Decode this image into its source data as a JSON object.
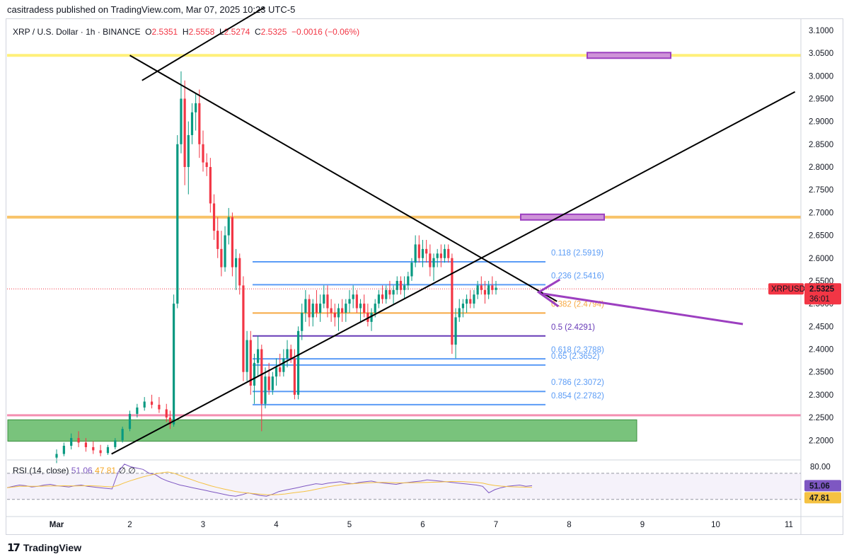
{
  "header": {
    "published_by": "casitradess published on TradingView.com, Mar 07, 2025 10:23 UTC-5"
  },
  "legend": {
    "symbol": "XRP / U.S. Dollar · 1h · BINANCE",
    "o_label": "O",
    "o": "2.5351",
    "h_label": "H",
    "h": "2.5558",
    "l_label": "L",
    "l": "2.5274",
    "c_label": "C",
    "c": "2.5325",
    "change": "−0.0016 (−0.06%)"
  },
  "price_badge": {
    "ticker": "XRPUSD",
    "price": "2.5325",
    "countdown": "36:01"
  },
  "rsi": {
    "label": "RSI (14, close)",
    "value": "51.06",
    "ma": "47.81",
    "symbol": "∅ ∅",
    "level_label": "80.00"
  },
  "footer": {
    "brand": "TradingView"
  },
  "colors": {
    "up": "#089981",
    "down": "#f23645",
    "fib_blue": "#5b9cf6",
    "fib_orange": "#f7a943",
    "fib_purple": "#673ab7",
    "yellow_zone": "#fff07a",
    "orange_zone": "#f8c46a",
    "support_zone": "#4caf50",
    "pink_line": "#f48fb1",
    "arrow": "#9c3fc0",
    "rsi_line": "#7e57c2",
    "rsi_ma": "#f5c242"
  },
  "chart_data": {
    "type": "candlestick",
    "symbol": "XRP / U.S. Dollar",
    "interval": "1h",
    "x_ticks": [
      "Mar",
      "2",
      "3",
      "4",
      "5",
      "6",
      "7",
      "8",
      "9",
      "10",
      "11"
    ],
    "y_ticks": [
      "3.1000",
      "3.0500",
      "3.0000",
      "2.9500",
      "2.9000",
      "2.8500",
      "2.8000",
      "2.7500",
      "2.7000",
      "2.6500",
      "2.6000",
      "2.5500",
      "2.5000",
      "2.4500",
      "2.4000",
      "2.3500",
      "2.3000",
      "2.2500",
      "2.2000"
    ],
    "ylim": [
      2.16,
      3.12
    ],
    "xlim": [
      "Feb 28 18:00",
      "Mar 11 12:00"
    ],
    "fib_levels": [
      {
        "label": "0.118 (2.5919)",
        "value": 2.5919,
        "color": "blue"
      },
      {
        "label": "0.236 (2.5416)",
        "value": 2.5416,
        "color": "blue"
      },
      {
        "label": "0.382 (2.4794)",
        "value": 2.4794,
        "color": "orange"
      },
      {
        "label": "0.5 (2.4291)",
        "value": 2.4291,
        "color": "purple"
      },
      {
        "label": "0.618 (2.3788)",
        "value": 2.3788,
        "color": "blue"
      },
      {
        "label": "0.65 (2.3652)",
        "value": 2.3652,
        "color": "blue"
      },
      {
        "label": "0.786 (2.3072)",
        "value": 2.3072,
        "color": "blue"
      },
      {
        "label": "0.854 (2.2782)",
        "value": 2.2782,
        "color": "blue"
      }
    ],
    "horizontal_zones": [
      {
        "value": 3.045,
        "color": "yellow"
      },
      {
        "value": 2.69,
        "color": "orange"
      },
      {
        "value": 2.255,
        "color": "pink"
      }
    ],
    "support_box": [
      2.198,
      2.245
    ],
    "trendlines": [
      {
        "from": [
          "Mar 2 00:00",
          3.045
        ],
        "to": [
          "Mar 7 20:00",
          2.505
        ]
      },
      {
        "from": [
          "Mar 1 18:00",
          2.17
        ],
        "to": [
          "Mar 11 02:00",
          2.965
        ]
      },
      {
        "from": [
          "Mar 2 04:00",
          2.99
        ],
        "to": [
          "Mar 3 20:00",
          3.15
        ]
      }
    ],
    "arrow_target": [
      "Mar 7 14:00",
      2.525
    ],
    "current_price": 2.5325,
    "candles": [
      {
        "d": 0.0,
        "o": 2.162,
        "h": 2.18,
        "l": 2.15,
        "c": 2.17
      },
      {
        "d": 0.1,
        "o": 2.17,
        "h": 2.195,
        "l": 2.165,
        "c": 2.188
      },
      {
        "d": 0.2,
        "o": 2.188,
        "h": 2.215,
        "l": 2.18,
        "c": 2.205
      },
      {
        "d": 0.3,
        "o": 2.205,
        "h": 2.22,
        "l": 2.185,
        "c": 2.195
      },
      {
        "d": 0.4,
        "o": 2.195,
        "h": 2.205,
        "l": 2.175,
        "c": 2.185
      },
      {
        "d": 0.5,
        "o": 2.185,
        "h": 2.198,
        "l": 2.17,
        "c": 2.178
      },
      {
        "d": 0.6,
        "o": 2.178,
        "h": 2.19,
        "l": 2.165,
        "c": 2.172
      },
      {
        "d": 0.7,
        "o": 2.172,
        "h": 2.19,
        "l": 2.168,
        "c": 2.185
      },
      {
        "d": 0.8,
        "o": 2.185,
        "h": 2.205,
        "l": 2.18,
        "c": 2.2
      },
      {
        "d": 0.9,
        "o": 2.2,
        "h": 2.23,
        "l": 2.195,
        "c": 2.225
      },
      {
        "d": 1.0,
        "o": 2.225,
        "h": 2.265,
        "l": 2.22,
        "c": 2.258
      },
      {
        "d": 1.1,
        "o": 2.258,
        "h": 2.28,
        "l": 2.25,
        "c": 2.272
      },
      {
        "d": 1.2,
        "o": 2.272,
        "h": 2.295,
        "l": 2.265,
        "c": 2.285
      },
      {
        "d": 1.3,
        "o": 2.285,
        "h": 2.3,
        "l": 2.27,
        "c": 2.278
      },
      {
        "d": 1.4,
        "o": 2.278,
        "h": 2.295,
        "l": 2.26,
        "c": 2.268
      },
      {
        "d": 1.5,
        "o": 2.268,
        "h": 2.28,
        "l": 2.24,
        "c": 2.25
      },
      {
        "d": 1.55,
        "o": 2.25,
        "h": 2.265,
        "l": 2.225,
        "c": 2.235
      },
      {
        "d": 1.6,
        "o": 2.235,
        "h": 2.52,
        "l": 2.23,
        "c": 2.5
      },
      {
        "d": 1.65,
        "o": 2.5,
        "h": 2.87,
        "l": 2.49,
        "c": 2.85
      },
      {
        "d": 1.7,
        "o": 2.85,
        "h": 3.01,
        "l": 2.83,
        "c": 2.95
      },
      {
        "d": 1.75,
        "o": 2.95,
        "h": 2.99,
        "l": 2.76,
        "c": 2.8
      },
      {
        "d": 1.8,
        "o": 2.8,
        "h": 2.9,
        "l": 2.74,
        "c": 2.87
      },
      {
        "d": 1.85,
        "o": 2.87,
        "h": 2.94,
        "l": 2.85,
        "c": 2.92
      },
      {
        "d": 1.9,
        "o": 2.92,
        "h": 2.96,
        "l": 2.88,
        "c": 2.94
      },
      {
        "d": 1.95,
        "o": 2.94,
        "h": 2.97,
        "l": 2.82,
        "c": 2.85
      },
      {
        "d": 2.0,
        "o": 2.85,
        "h": 2.88,
        "l": 2.79,
        "c": 2.81
      },
      {
        "d": 2.05,
        "o": 2.81,
        "h": 2.83,
        "l": 2.78,
        "c": 2.8
      },
      {
        "d": 2.1,
        "o": 2.8,
        "h": 2.82,
        "l": 2.7,
        "c": 2.72
      },
      {
        "d": 2.15,
        "o": 2.72,
        "h": 2.74,
        "l": 2.64,
        "c": 2.66
      },
      {
        "d": 2.2,
        "o": 2.66,
        "h": 2.69,
        "l": 2.6,
        "c": 2.62
      },
      {
        "d": 2.25,
        "o": 2.62,
        "h": 2.66,
        "l": 2.56,
        "c": 2.58
      },
      {
        "d": 2.3,
        "o": 2.58,
        "h": 2.67,
        "l": 2.57,
        "c": 2.65
      },
      {
        "d": 2.35,
        "o": 2.65,
        "h": 2.71,
        "l": 2.63,
        "c": 2.69
      },
      {
        "d": 2.4,
        "o": 2.69,
        "h": 2.7,
        "l": 2.56,
        "c": 2.58
      },
      {
        "d": 2.45,
        "o": 2.58,
        "h": 2.62,
        "l": 2.53,
        "c": 2.6
      },
      {
        "d": 2.5,
        "o": 2.6,
        "h": 2.61,
        "l": 2.52,
        "c": 2.54
      },
      {
        "d": 2.55,
        "o": 2.54,
        "h": 2.56,
        "l": 2.33,
        "c": 2.35
      },
      {
        "d": 2.6,
        "o": 2.35,
        "h": 2.44,
        "l": 2.33,
        "c": 2.42
      },
      {
        "d": 2.65,
        "o": 2.42,
        "h": 2.44,
        "l": 2.3,
        "c": 2.32
      },
      {
        "d": 2.7,
        "o": 2.32,
        "h": 2.39,
        "l": 2.28,
        "c": 2.37
      },
      {
        "d": 2.75,
        "o": 2.37,
        "h": 2.43,
        "l": 2.34,
        "c": 2.4
      },
      {
        "d": 2.8,
        "o": 2.4,
        "h": 2.41,
        "l": 2.22,
        "c": 2.28
      },
      {
        "d": 2.85,
        "o": 2.28,
        "h": 2.36,
        "l": 2.27,
        "c": 2.34
      },
      {
        "d": 2.9,
        "o": 2.34,
        "h": 2.37,
        "l": 2.3,
        "c": 2.31
      },
      {
        "d": 2.95,
        "o": 2.31,
        "h": 2.35,
        "l": 2.3,
        "c": 2.34
      },
      {
        "d": 3.0,
        "o": 2.34,
        "h": 2.38,
        "l": 2.32,
        "c": 2.36
      },
      {
        "d": 3.05,
        "o": 2.36,
        "h": 2.39,
        "l": 2.34,
        "c": 2.35
      },
      {
        "d": 3.1,
        "o": 2.35,
        "h": 2.4,
        "l": 2.34,
        "c": 2.38
      },
      {
        "d": 3.15,
        "o": 2.38,
        "h": 2.42,
        "l": 2.36,
        "c": 2.4
      },
      {
        "d": 3.2,
        "o": 2.4,
        "h": 2.41,
        "l": 2.37,
        "c": 2.38
      },
      {
        "d": 3.25,
        "o": 2.38,
        "h": 2.4,
        "l": 2.29,
        "c": 2.3
      },
      {
        "d": 3.3,
        "o": 2.3,
        "h": 2.45,
        "l": 2.29,
        "c": 2.44
      },
      {
        "d": 3.35,
        "o": 2.44,
        "h": 2.5,
        "l": 2.42,
        "c": 2.48
      },
      {
        "d": 3.4,
        "o": 2.48,
        "h": 2.53,
        "l": 2.46,
        "c": 2.51
      },
      {
        "d": 3.45,
        "o": 2.51,
        "h": 2.52,
        "l": 2.45,
        "c": 2.47
      },
      {
        "d": 3.5,
        "o": 2.47,
        "h": 2.51,
        "l": 2.45,
        "c": 2.5
      },
      {
        "d": 3.55,
        "o": 2.5,
        "h": 2.53,
        "l": 2.47,
        "c": 2.48
      },
      {
        "d": 3.6,
        "o": 2.48,
        "h": 2.52,
        "l": 2.46,
        "c": 2.5
      },
      {
        "d": 3.65,
        "o": 2.5,
        "h": 2.54,
        "l": 2.49,
        "c": 2.52
      },
      {
        "d": 3.7,
        "o": 2.52,
        "h": 2.54,
        "l": 2.47,
        "c": 2.49
      },
      {
        "d": 3.75,
        "o": 2.49,
        "h": 2.51,
        "l": 2.46,
        "c": 2.48
      },
      {
        "d": 3.8,
        "o": 2.48,
        "h": 2.5,
        "l": 2.45,
        "c": 2.47
      },
      {
        "d": 3.85,
        "o": 2.47,
        "h": 2.5,
        "l": 2.44,
        "c": 2.49
      },
      {
        "d": 3.9,
        "o": 2.49,
        "h": 2.51,
        "l": 2.46,
        "c": 2.48
      },
      {
        "d": 3.95,
        "o": 2.48,
        "h": 2.51,
        "l": 2.46,
        "c": 2.5
      },
      {
        "d": 4.0,
        "o": 2.5,
        "h": 2.53,
        "l": 2.48,
        "c": 2.51
      },
      {
        "d": 4.05,
        "o": 2.51,
        "h": 2.54,
        "l": 2.49,
        "c": 2.52
      },
      {
        "d": 4.1,
        "o": 2.52,
        "h": 2.53,
        "l": 2.48,
        "c": 2.49
      },
      {
        "d": 4.15,
        "o": 2.49,
        "h": 2.51,
        "l": 2.46,
        "c": 2.5
      },
      {
        "d": 4.2,
        "o": 2.5,
        "h": 2.52,
        "l": 2.47,
        "c": 2.48
      },
      {
        "d": 4.25,
        "o": 2.48,
        "h": 2.5,
        "l": 2.45,
        "c": 2.46
      },
      {
        "d": 4.3,
        "o": 2.46,
        "h": 2.49,
        "l": 2.44,
        "c": 2.48
      },
      {
        "d": 4.35,
        "o": 2.48,
        "h": 2.51,
        "l": 2.47,
        "c": 2.5
      },
      {
        "d": 4.4,
        "o": 2.5,
        "h": 2.53,
        "l": 2.49,
        "c": 2.52
      },
      {
        "d": 4.45,
        "o": 2.52,
        "h": 2.54,
        "l": 2.5,
        "c": 2.51
      },
      {
        "d": 4.5,
        "o": 2.51,
        "h": 2.54,
        "l": 2.5,
        "c": 2.53
      },
      {
        "d": 4.55,
        "o": 2.53,
        "h": 2.55,
        "l": 2.51,
        "c": 2.52
      },
      {
        "d": 4.6,
        "o": 2.52,
        "h": 2.54,
        "l": 2.5,
        "c": 2.53
      },
      {
        "d": 4.65,
        "o": 2.53,
        "h": 2.56,
        "l": 2.52,
        "c": 2.55
      },
      {
        "d": 4.7,
        "o": 2.55,
        "h": 2.56,
        "l": 2.52,
        "c": 2.53
      },
      {
        "d": 4.75,
        "o": 2.53,
        "h": 2.56,
        "l": 2.51,
        "c": 2.54
      },
      {
        "d": 4.8,
        "o": 2.54,
        "h": 2.57,
        "l": 2.53,
        "c": 2.56
      },
      {
        "d": 4.85,
        "o": 2.56,
        "h": 2.6,
        "l": 2.55,
        "c": 2.59
      },
      {
        "d": 4.9,
        "o": 2.59,
        "h": 2.65,
        "l": 2.58,
        "c": 2.63
      },
      {
        "d": 4.95,
        "o": 2.63,
        "h": 2.65,
        "l": 2.59,
        "c": 2.6
      },
      {
        "d": 5.0,
        "o": 2.6,
        "h": 2.64,
        "l": 2.58,
        "c": 2.62
      },
      {
        "d": 5.05,
        "o": 2.62,
        "h": 2.64,
        "l": 2.59,
        "c": 2.61
      },
      {
        "d": 5.1,
        "o": 2.61,
        "h": 2.63,
        "l": 2.56,
        "c": 2.58
      },
      {
        "d": 5.15,
        "o": 2.58,
        "h": 2.61,
        "l": 2.55,
        "c": 2.6
      },
      {
        "d": 5.2,
        "o": 2.6,
        "h": 2.62,
        "l": 2.58,
        "c": 2.61
      },
      {
        "d": 5.25,
        "o": 2.61,
        "h": 2.63,
        "l": 2.58,
        "c": 2.6
      },
      {
        "d": 5.3,
        "o": 2.6,
        "h": 2.63,
        "l": 2.59,
        "c": 2.62
      },
      {
        "d": 5.35,
        "o": 2.62,
        "h": 2.63,
        "l": 2.59,
        "c": 2.6
      },
      {
        "d": 5.4,
        "o": 2.6,
        "h": 2.61,
        "l": 2.39,
        "c": 2.41
      },
      {
        "d": 5.45,
        "o": 2.41,
        "h": 2.49,
        "l": 2.38,
        "c": 2.47
      },
      {
        "d": 5.5,
        "o": 2.47,
        "h": 2.51,
        "l": 2.46,
        "c": 2.49
      },
      {
        "d": 5.55,
        "o": 2.49,
        "h": 2.51,
        "l": 2.47,
        "c": 2.5
      },
      {
        "d": 5.6,
        "o": 2.5,
        "h": 2.52,
        "l": 2.48,
        "c": 2.51
      },
      {
        "d": 5.65,
        "o": 2.51,
        "h": 2.53,
        "l": 2.49,
        "c": 2.5
      },
      {
        "d": 5.7,
        "o": 2.5,
        "h": 2.53,
        "l": 2.49,
        "c": 2.52
      },
      {
        "d": 5.75,
        "o": 2.52,
        "h": 2.55,
        "l": 2.51,
        "c": 2.54
      },
      {
        "d": 5.8,
        "o": 2.54,
        "h": 2.56,
        "l": 2.52,
        "c": 2.53
      },
      {
        "d": 5.85,
        "o": 2.53,
        "h": 2.55,
        "l": 2.5,
        "c": 2.52
      },
      {
        "d": 5.9,
        "o": 2.52,
        "h": 2.55,
        "l": 2.51,
        "c": 2.54
      },
      {
        "d": 5.95,
        "o": 2.54,
        "h": 2.56,
        "l": 2.52,
        "c": 2.53
      },
      {
        "d": 6.0,
        "o": 2.53,
        "h": 2.55,
        "l": 2.52,
        "c": 2.535
      }
    ],
    "rsi": {
      "value": 51.06,
      "ma": 47.81,
      "upper": 70,
      "lower": 30,
      "ylim": [
        20,
        85
      ],
      "series": [
        48,
        50,
        52,
        51,
        49,
        50,
        52,
        53,
        51,
        50,
        49,
        51,
        52,
        50,
        49,
        48,
        47,
        46,
        72,
        84,
        80,
        78,
        76,
        70,
        68,
        62,
        58,
        55,
        52,
        50,
        48,
        46,
        44,
        42,
        40,
        38,
        36,
        35,
        37,
        40,
        38,
        36,
        35,
        38,
        42,
        44,
        46,
        48,
        50,
        52,
        54,
        53,
        55,
        56,
        57,
        55,
        54,
        56,
        57,
        58,
        56,
        55,
        54,
        53,
        55,
        56,
        57,
        58,
        60,
        59,
        58,
        57,
        56,
        55,
        54,
        53,
        52,
        50,
        40,
        45,
        48,
        50,
        51,
        52,
        50,
        51
      ]
    }
  }
}
